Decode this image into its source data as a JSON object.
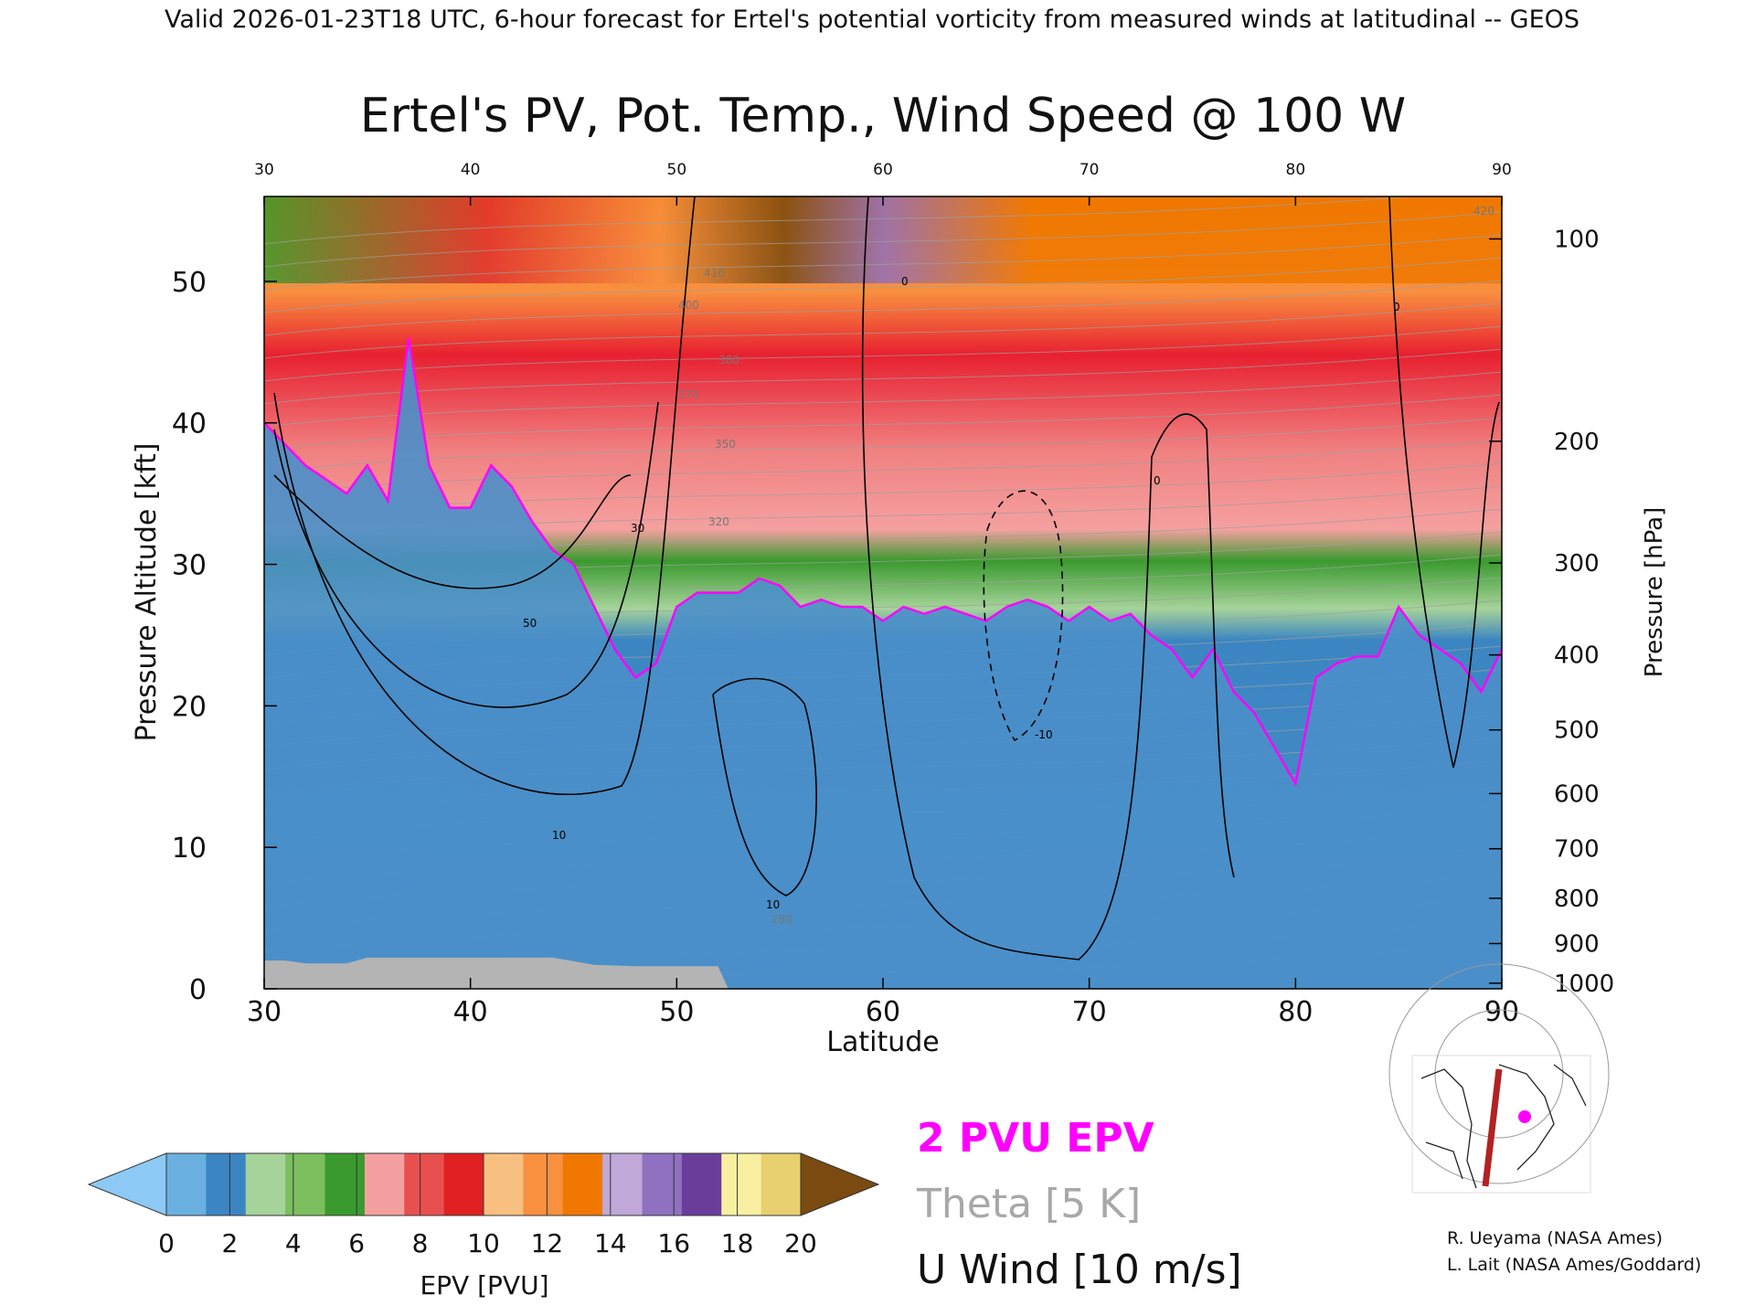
{
  "header_text": "Valid 2026-01-23T18 UTC, 6-hour forecast for Ertel's potential vorticity from measured winds at latitudinal -- GEOS",
  "colors": {
    "pv_boundary": "#ff00ff",
    "theta": "#a0a0a0",
    "wind": "#000000",
    "terrain": "#b4b4b4",
    "map_track": "#b22222",
    "map_point": "#ff00ff",
    "colorbar": [
      "#8ccaf5",
      "#6ab0e0",
      "#3b85c2",
      "#a6d39a",
      "#7cbf5e",
      "#3a9a2e",
      "#f5a0a0",
      "#e85050",
      "#e02020",
      "#f8c080",
      "#f89040",
      "#f07800",
      "#c0a8d8",
      "#9070c0",
      "#6a3d9a",
      "#f8f0a0",
      "#e8d070",
      "#7a4a10"
    ]
  },
  "chart_data": {
    "type": "heatmap",
    "title": "Ertel's PV, Pot. Temp., Wind Speed @ 100 W",
    "xlabel": "Latitude",
    "ylabel": "Pressure Altitude [kft]",
    "y2label": "Pressure [hPa]",
    "xlim": [
      30,
      90
    ],
    "ylim": [
      0,
      56
    ],
    "x_ticks": [
      "30",
      "40",
      "50",
      "60",
      "70",
      "80",
      "90"
    ],
    "x_top_ticks": [
      "30",
      "40",
      "50",
      "60",
      "70",
      "80",
      "90"
    ],
    "y_ticks": [
      "0",
      "10",
      "20",
      "30",
      "40",
      "50"
    ],
    "pressure_ticks": [
      {
        "label": "100",
        "kft": 53.0
      },
      {
        "label": "200",
        "kft": 38.7
      },
      {
        "label": "300",
        "kft": 30.1
      },
      {
        "label": "400",
        "kft": 23.6
      },
      {
        "label": "500",
        "kft": 18.3
      },
      {
        "label": "600",
        "kft": 13.8
      },
      {
        "label": "700",
        "kft": 9.9
      },
      {
        "label": "800",
        "kft": 6.4
      },
      {
        "label": "900",
        "kft": 3.2
      },
      {
        "label": "1000",
        "kft": 0.4
      }
    ],
    "pv2_boundary": [
      [
        30,
        40
      ],
      [
        32,
        37
      ],
      [
        34,
        35
      ],
      [
        35,
        37
      ],
      [
        36,
        34.5
      ],
      [
        37,
        46
      ],
      [
        38,
        37
      ],
      [
        39,
        34
      ],
      [
        40,
        34
      ],
      [
        41,
        37
      ],
      [
        42,
        35.5
      ],
      [
        43,
        33
      ],
      [
        44,
        31
      ],
      [
        45,
        30
      ],
      [
        46,
        27
      ],
      [
        47,
        24
      ],
      [
        48,
        22
      ],
      [
        49,
        23
      ],
      [
        50,
        27
      ],
      [
        51,
        28
      ],
      [
        52,
        28
      ],
      [
        53,
        28
      ],
      [
        54,
        29
      ],
      [
        55,
        28.5
      ],
      [
        56,
        27
      ],
      [
        57,
        27.5
      ],
      [
        58,
        27
      ],
      [
        59,
        27
      ],
      [
        60,
        26
      ],
      [
        61,
        27
      ],
      [
        62,
        26.5
      ],
      [
        63,
        27
      ],
      [
        64,
        26.5
      ],
      [
        65,
        26
      ],
      [
        66,
        27
      ],
      [
        67,
        27.5
      ],
      [
        68,
        27
      ],
      [
        69,
        26
      ],
      [
        70,
        27
      ],
      [
        71,
        26
      ],
      [
        72,
        26.5
      ],
      [
        73,
        25
      ],
      [
        74,
        24
      ],
      [
        75,
        22
      ],
      [
        76,
        24
      ],
      [
        77,
        21
      ],
      [
        78,
        19.5
      ],
      [
        79,
        17
      ],
      [
        80,
        14.5
      ],
      [
        81,
        22
      ],
      [
        82,
        23
      ],
      [
        83,
        23.5
      ],
      [
        84,
        23.5
      ],
      [
        85,
        27
      ],
      [
        86,
        25
      ],
      [
        87,
        24
      ],
      [
        88,
        23
      ],
      [
        89,
        21
      ],
      [
        90,
        24
      ]
    ],
    "terrain_surface_kft": [
      [
        30,
        2
      ],
      [
        31,
        2
      ],
      [
        32,
        1.8
      ],
      [
        34,
        1.8
      ],
      [
        35,
        2.2
      ],
      [
        40,
        2.2
      ],
      [
        44,
        2.2
      ],
      [
        46,
        1.7
      ],
      [
        48,
        1.6
      ],
      [
        50,
        1.6
      ],
      [
        52,
        1.6
      ],
      [
        52.5,
        0
      ],
      [
        90,
        0
      ]
    ],
    "theta_levels_K": [
      "280",
      "320",
      "350",
      "370",
      "380",
      "400",
      "410",
      "420"
    ],
    "wind_contour_labels": [
      "10",
      "30",
      "50",
      "0",
      "-10"
    ],
    "colorbar": {
      "label": "EPV [PVU]",
      "ticks": [
        "0",
        "2",
        "4",
        "6",
        "8",
        "10",
        "12",
        "14",
        "16",
        "18",
        "20"
      ],
      "min": 0,
      "max": 20,
      "step": 1.111
    },
    "legend": {
      "pv": "2 PVU EPV",
      "theta": "Theta [5 K]",
      "wind": "U Wind [10 m/s]"
    }
  },
  "credits": [
    "R. Ueyama (NASA Ames)",
    "L. Lait (NASA Ames/Goddard)"
  ]
}
